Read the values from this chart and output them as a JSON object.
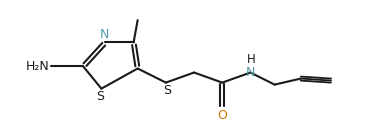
{
  "bg_color": "#ffffff",
  "line_color": "#1a1a1a",
  "n_color": "#5599aa",
  "o_color": "#cc7700",
  "atom_color": "#1a1a1a",
  "figsize": [
    3.74,
    1.38
  ],
  "dpi": 100,
  "lw": 1.5,
  "fontsize": 9.0,
  "xlim": [
    0.3,
    4.0
  ],
  "ylim": [
    0.05,
    1.1
  ]
}
